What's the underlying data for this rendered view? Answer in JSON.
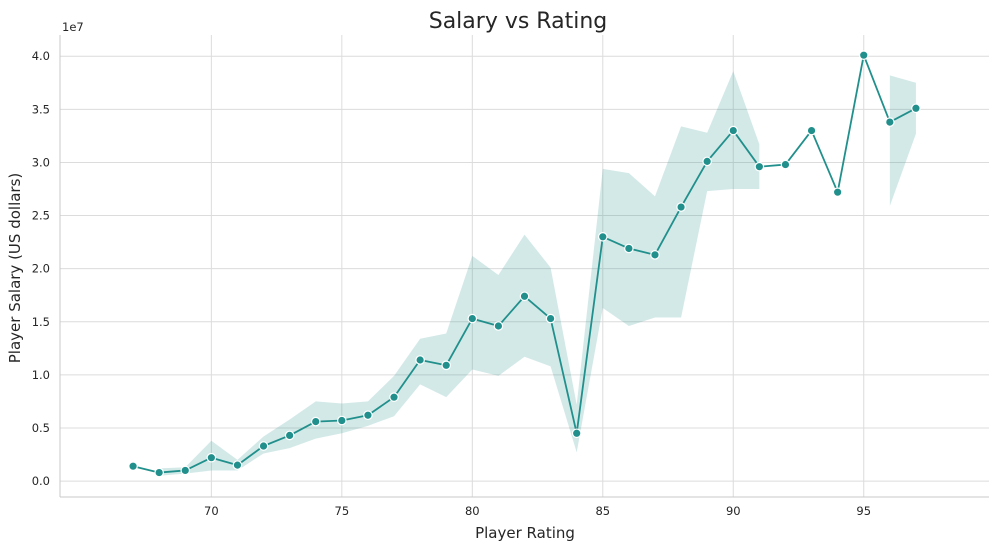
{
  "chart_data": {
    "type": "line",
    "title": "Salary vs Rating",
    "xlabel": "Player Rating",
    "ylabel": "Player Salary (US dollars)",
    "y_offset_text": "1e7",
    "xlim": [
      64.2,
      99.8
    ],
    "ylim": [
      -0.15,
      4.2
    ],
    "x_ticks": [
      70,
      75,
      80,
      85,
      90,
      95
    ],
    "y_ticks": [
      0.0,
      0.5,
      1.0,
      1.5,
      2.0,
      2.5,
      3.0,
      3.5,
      4.0
    ],
    "y_tick_labels": [
      "0.0",
      "0.5",
      "1.0",
      "1.5",
      "2.0",
      "2.5",
      "3.0",
      "3.5",
      "4.0"
    ],
    "grid": true,
    "line_color": "#21908c",
    "band_color": "#21908c",
    "series": [
      {
        "x": [
          67,
          68,
          69,
          70,
          71,
          72,
          73,
          74,
          75,
          76,
          77,
          78,
          79,
          80,
          81,
          82,
          83,
          84,
          85,
          86,
          87,
          88,
          89,
          90,
          91,
          92,
          93,
          94,
          95,
          96,
          97
        ],
        "values": [
          0.14,
          0.08,
          0.1,
          0.22,
          0.15,
          0.33,
          0.43,
          0.56,
          0.57,
          0.62,
          0.79,
          1.14,
          1.09,
          1.53,
          1.46,
          1.74,
          1.53,
          0.45,
          2.3,
          2.19,
          2.13,
          2.58,
          3.01,
          3.3,
          2.96,
          2.98,
          3.3,
          2.72,
          4.01,
          3.38,
          3.51
        ],
        "ci_lower": [
          null,
          0.05,
          0.07,
          0.1,
          0.1,
          0.26,
          0.31,
          0.4,
          0.45,
          0.52,
          0.61,
          0.91,
          0.79,
          1.05,
          0.99,
          1.17,
          1.08,
          0.27,
          1.63,
          1.46,
          1.54,
          1.54,
          2.73,
          2.75,
          2.75,
          null,
          null,
          null,
          null,
          2.59,
          3.27
        ],
        "ci_upper": [
          null,
          0.12,
          0.13,
          0.38,
          0.2,
          0.42,
          0.58,
          0.75,
          0.73,
          0.75,
          0.99,
          1.34,
          1.39,
          2.12,
          1.94,
          2.32,
          2.01,
          0.72,
          2.94,
          2.9,
          2.68,
          3.34,
          3.28,
          3.86,
          3.17,
          null,
          null,
          null,
          null,
          3.82,
          3.75
        ]
      }
    ]
  }
}
